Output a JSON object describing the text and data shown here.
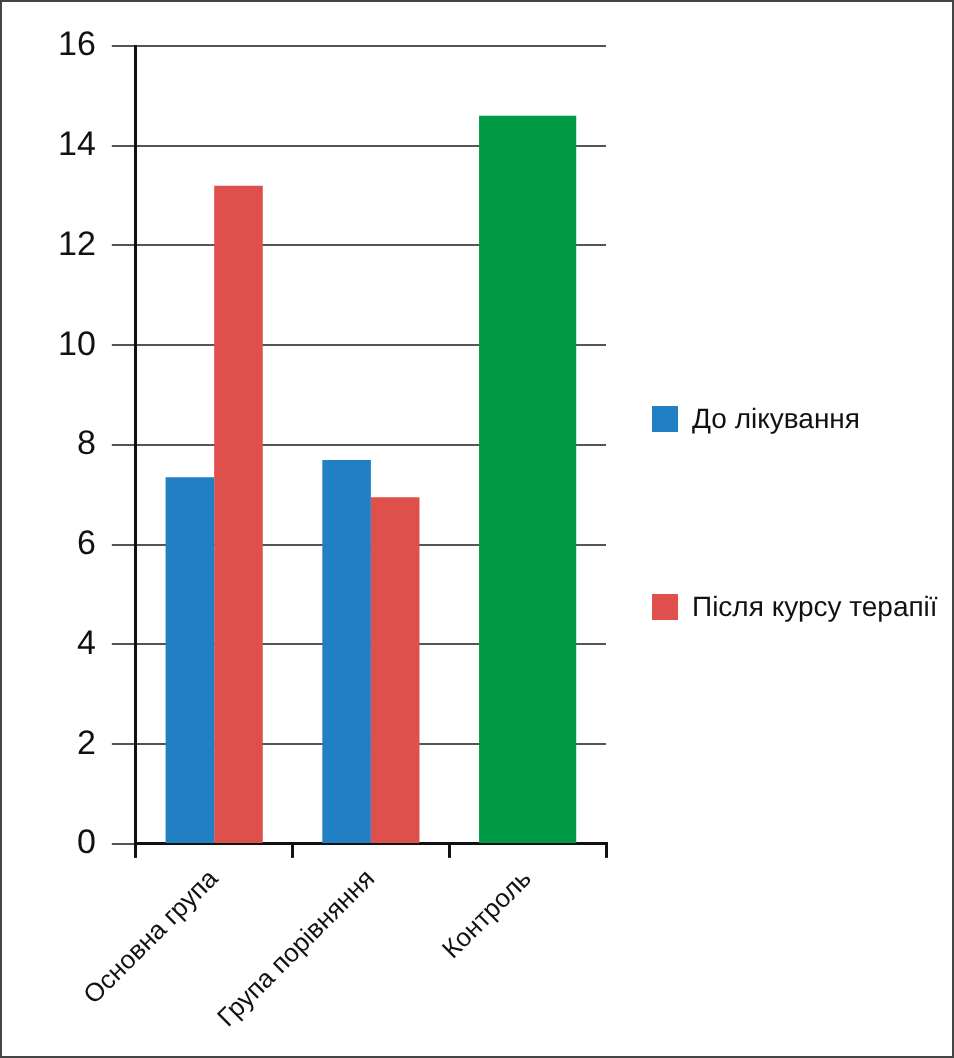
{
  "chart_data": {
    "type": "bar",
    "categories": [
      "Основна група",
      "Група порівняння",
      "Контроль"
    ],
    "series": [
      {
        "name": "До лікування",
        "color": "#2080c3",
        "values": [
          7.35,
          7.7,
          null
        ]
      },
      {
        "name": "Після курсу терапії",
        "color": "#df4f4c",
        "values": [
          13.2,
          6.95,
          null
        ]
      },
      {
        "color": "#009a44",
        "values": [
          null,
          null,
          14.6
        ]
      }
    ],
    "ylim": [
      0,
      16
    ],
    "yticks": [
      0,
      2,
      4,
      6,
      8,
      10,
      12,
      14,
      16
    ],
    "grid": "y",
    "legend": "right"
  }
}
